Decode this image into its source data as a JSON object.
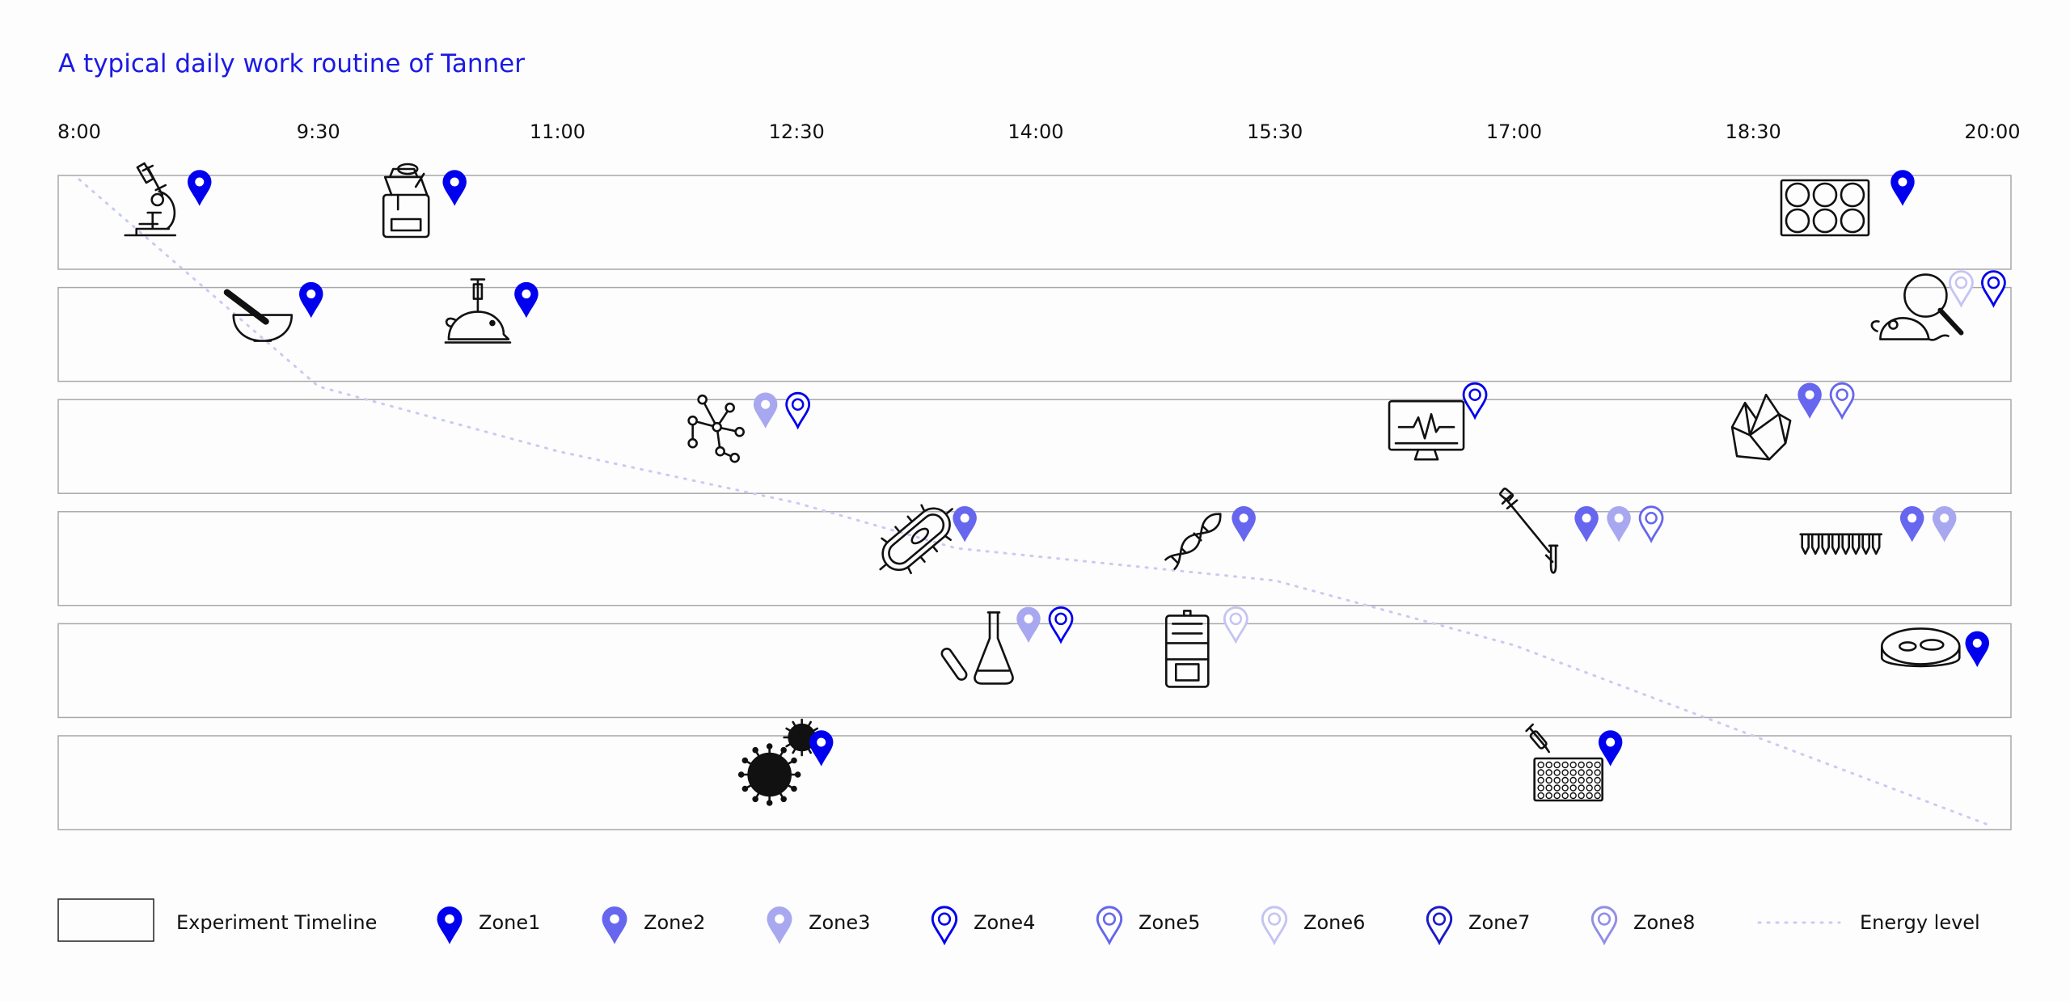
{
  "chart_data": {
    "type": "timeline",
    "title": "A typical daily work routine of Tanner",
    "x_ticks": [
      "8:00",
      "9:30",
      "11:00",
      "12:30",
      "14:00",
      "15:30",
      "17:00",
      "18:30",
      "20:00"
    ],
    "x_range_hours": [
      8,
      20
    ],
    "lanes": 6,
    "zones": [
      {
        "name": "Zone1",
        "color": "#0000ee",
        "style": "solid-dot"
      },
      {
        "name": "Zone2",
        "color": "#6666ee",
        "style": "solid-dot"
      },
      {
        "name": "Zone3",
        "color": "#a8a8f0",
        "style": "solid-dot"
      },
      {
        "name": "Zone4",
        "color": "#0000ee",
        "style": "outline"
      },
      {
        "name": "Zone5",
        "color": "#6666ee",
        "style": "outline"
      },
      {
        "name": "Zone6",
        "color": "#c4c4f4",
        "style": "outline"
      },
      {
        "name": "Zone7",
        "color": "#1a1acc",
        "style": "outline"
      },
      {
        "name": "Zone8",
        "color": "#8f8fe8",
        "style": "outline"
      }
    ],
    "activities": [
      {
        "lane": 1,
        "time": 8.45,
        "icon": "microscope-icon",
        "zones": [
          "Zone1"
        ]
      },
      {
        "lane": 1,
        "time": 10.05,
        "icon": "blender-icon",
        "zones": [
          "Zone1"
        ]
      },
      {
        "lane": 1,
        "time": 18.95,
        "icon": "well-plate-icon",
        "zones": [
          "Zone1"
        ]
      },
      {
        "lane": 2,
        "time": 9.15,
        "icon": "mortar-pestle-icon",
        "zones": [
          "Zone1"
        ]
      },
      {
        "lane": 2,
        "time": 10.5,
        "icon": "mouse-injection-icon",
        "zones": [
          "Zone1"
        ]
      },
      {
        "lane": 2,
        "time": 19.5,
        "icon": "mouse-magnifier-icon",
        "zones": [
          "Zone6",
          "Zone4"
        ]
      },
      {
        "lane": 3,
        "time": 12.0,
        "icon": "molecule-icon",
        "zones": [
          "Zone3",
          "Zone4"
        ]
      },
      {
        "lane": 3,
        "time": 16.45,
        "icon": "monitor-ecg-icon",
        "zones": [
          "Zone4"
        ]
      },
      {
        "lane": 3,
        "time": 18.55,
        "icon": "crystals-icon",
        "zones": [
          "Zone2",
          "Zone5"
        ]
      },
      {
        "lane": 4,
        "time": 13.25,
        "icon": "bacterium-icon",
        "zones": [
          "Zone2"
        ]
      },
      {
        "lane": 4,
        "time": 15.0,
        "icon": "dna-icon",
        "zones": [
          "Zone2"
        ]
      },
      {
        "lane": 4,
        "time": 17.15,
        "icon": "pipette-tube-icon",
        "zones": [
          "Zone2",
          "Zone3",
          "Zone5"
        ]
      },
      {
        "lane": 4,
        "time": 19.05,
        "icon": "tube-strip-icon",
        "zones": [
          "Zone2",
          "Zone3"
        ]
      },
      {
        "lane": 5,
        "time": 13.65,
        "icon": "flask-tube-icon",
        "zones": [
          "Zone3",
          "Zone4"
        ]
      },
      {
        "lane": 5,
        "time": 14.95,
        "icon": "incubator-icon",
        "zones": [
          "Zone6"
        ]
      },
      {
        "lane": 5,
        "time": 19.55,
        "icon": "petri-dish-icon",
        "zones": [
          "Zone1"
        ]
      },
      {
        "lane": 6,
        "time": 12.35,
        "icon": "virus-icon",
        "zones": [
          "Zone1"
        ]
      },
      {
        "lane": 6,
        "time": 17.3,
        "icon": "dropper-plate-icon",
        "zones": [
          "Zone1"
        ]
      }
    ],
    "energy_level": {
      "x": [
        8.0,
        9.5,
        11.0,
        12.5,
        13.5,
        15.5,
        17.0,
        18.5,
        20.0
      ],
      "y": [
        100,
        68,
        58,
        50,
        43,
        38,
        28,
        14,
        0
      ],
      "range": [
        0,
        100
      ]
    },
    "legend": {
      "timeline_label": "Experiment Timeline",
      "energy_label": "Energy level",
      "position": "bottom"
    }
  }
}
